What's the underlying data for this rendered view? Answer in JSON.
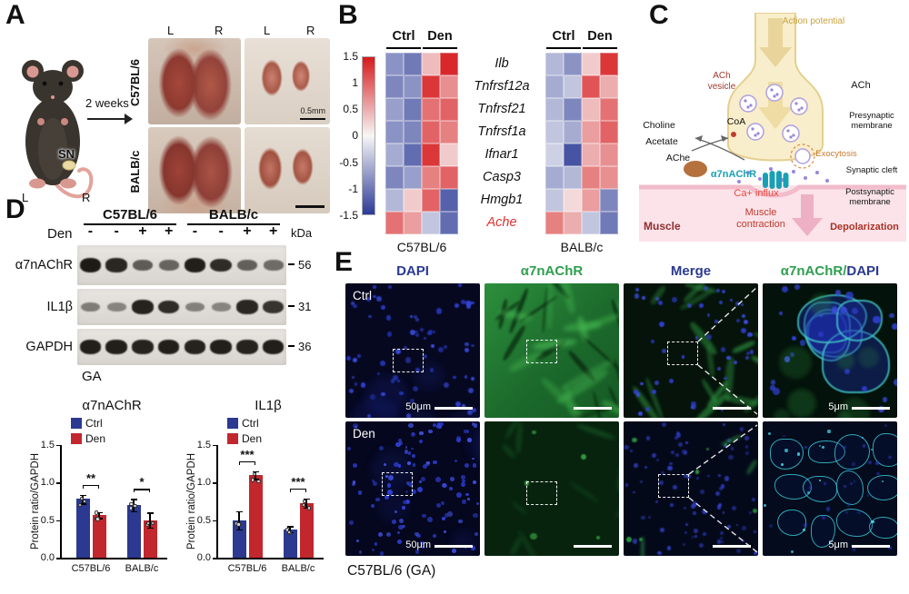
{
  "colors": {
    "ctrl": "#2b3990",
    "den": "#c1272d",
    "heat_pos": "#d7191c",
    "heat_neg": "#2c3b97",
    "dapi_blue": "#2b3990",
    "green": "#2e9e4f"
  },
  "panel_a": {
    "label": "A",
    "timeline": "2 weeks",
    "sn": "SN",
    "mouse_left": "L",
    "mouse_right": "R",
    "strains": [
      "C57BL/6",
      "BALB/c"
    ],
    "photo_col_labels": [
      "L",
      "R",
      "L",
      "R"
    ],
    "scale": "0.5mm"
  },
  "panel_b": {
    "label": "B",
    "colorbar_ticks": [
      "1.5",
      "1",
      "0.5",
      "0",
      "-0.5",
      "-1",
      "-1.5"
    ],
    "group_labels": [
      "Ctrl",
      "Den"
    ],
    "genes": [
      "Ilb",
      "Tnfrsf12a",
      "Tnfrsf21",
      "Tnfrsf1a",
      "Ifnar1",
      "Casp3",
      "Hmgb1",
      "Ache"
    ],
    "highlight_gene": "Ache",
    "heatmap_names": [
      "C57BL/6",
      "BALB/c"
    ]
  },
  "panel_c": {
    "label": "C",
    "action_potential": "Action potential",
    "ach_vesicle": "ACh vesicle",
    "ach": "ACh",
    "choline": "Choline",
    "coa": "CoA",
    "acetate": "Acetate",
    "ache": "AChe",
    "receptor": "α7nAChR",
    "exocytosis": "Exocytosis",
    "presynaptic": "Presynaptic membrane",
    "synaptic_cleft": "Synaptic cleft",
    "postsynaptic": "Postsynaptic membrane",
    "ca_influx": "Ca+ influx",
    "muscle_contraction": "Muscle contraction",
    "depolarization": "Depolarization",
    "muscle": "Muscle"
  },
  "panel_d": {
    "label": "D",
    "groups": [
      "C57BL/6",
      "BALB/c"
    ],
    "den": "Den",
    "lane_signs": [
      "-",
      "-",
      "+",
      "+",
      "-",
      "-",
      "+",
      "+"
    ],
    "kda": "kDa",
    "rows": [
      {
        "protein": "α7nAChR",
        "weight": "56",
        "intensities": [
          0.95,
          0.88,
          0.55,
          0.5,
          0.92,
          0.85,
          0.52,
          0.45
        ]
      },
      {
        "protein": "IL1β",
        "weight": "31",
        "intensities": [
          0.35,
          0.3,
          0.9,
          0.85,
          0.32,
          0.3,
          0.88,
          0.8
        ]
      },
      {
        "protein": "GAPDH",
        "weight": "36",
        "intensities": [
          0.92,
          0.92,
          0.9,
          0.92,
          0.9,
          0.92,
          0.9,
          0.92
        ]
      }
    ],
    "tissue": "GA"
  },
  "panel_e": {
    "label": "E",
    "headers": [
      "DAPI",
      "α7nAChR",
      "Merge"
    ],
    "header_combo": {
      "part1": "α7nAChR",
      "sep": "/",
      "part2": "DAPI"
    },
    "row_labels": [
      "Ctrl",
      "Den"
    ],
    "scale_50": "50μm",
    "scale_5": "5μm",
    "caption": "C57BL/6 (GA)"
  },
  "chart_data": [
    {
      "type": "heatmap",
      "name": "C57BL/6",
      "columns": [
        "Ctrl",
        "Ctrl",
        "Den",
        "Den"
      ],
      "rows": [
        "Ilb",
        "Tnfrsf12a",
        "Tnfrsf21",
        "Tnfrsf1a",
        "Ifnar1",
        "Casp3",
        "Hmgb1",
        "Ache"
      ],
      "zlim": [
        -1.5,
        1.5
      ],
      "values": [
        [
          -0.8,
          -1.0,
          0.4,
          1.4
        ],
        [
          -0.9,
          -0.8,
          1.3,
          0.7
        ],
        [
          -0.7,
          -1.0,
          0.9,
          1.0
        ],
        [
          -0.8,
          -0.9,
          1.0,
          0.8
        ],
        [
          -0.6,
          -1.1,
          1.3,
          0.3
        ],
        [
          -0.9,
          -0.7,
          0.8,
          1.0
        ],
        [
          -0.5,
          0.3,
          1.0,
          -1.2
        ],
        [
          0.9,
          0.6,
          -0.4,
          -1.1
        ]
      ]
    },
    {
      "type": "heatmap",
      "name": "BALB/c",
      "columns": [
        "Ctrl",
        "Ctrl",
        "Den",
        "Den"
      ],
      "rows": [
        "Ilb",
        "Tnfrsf12a",
        "Tnfrsf21",
        "Tnfrsf1a",
        "Ifnar1",
        "Casp3",
        "Hmgb1",
        "Ache"
      ],
      "zlim": [
        -1.5,
        1.5
      ],
      "values": [
        [
          -0.5,
          -0.8,
          0.3,
          1.3
        ],
        [
          -0.6,
          -0.4,
          1.1,
          0.5
        ],
        [
          -0.5,
          -0.9,
          0.4,
          0.9
        ],
        [
          -0.4,
          -0.6,
          0.6,
          1.0
        ],
        [
          -0.3,
          -1.3,
          0.5,
          0.7
        ],
        [
          -0.6,
          -0.5,
          0.8,
          0.7
        ],
        [
          -0.4,
          0.2,
          0.6,
          -0.9
        ],
        [
          0.8,
          0.5,
          -0.4,
          -1.0
        ]
      ]
    },
    {
      "type": "bar",
      "title": "α7nAChR",
      "ylabel": "Protein ratio/GAPDH",
      "ylim": [
        0,
        1.5
      ],
      "yticks": [
        "0.0",
        "0.5",
        "1.0",
        "1.5"
      ],
      "categories": [
        "C57BL/6",
        "BALB/c"
      ],
      "series": [
        {
          "name": "Ctrl",
          "values": [
            0.78,
            0.7
          ],
          "errors": [
            0.06,
            0.08
          ]
        },
        {
          "name": "Den",
          "values": [
            0.57,
            0.5
          ],
          "errors": [
            0.04,
            0.1
          ]
        }
      ],
      "significance": [
        "**",
        "*"
      ]
    },
    {
      "type": "bar",
      "title": "IL1β",
      "ylabel": "Protein ratio/GAPDH",
      "ylim": [
        0,
        1.5
      ],
      "yticks": [
        "0.0",
        "0.5",
        "1.0",
        "1.5"
      ],
      "categories": [
        "C57BL/6",
        "BALB/c"
      ],
      "series": [
        {
          "name": "Ctrl",
          "values": [
            0.5,
            0.38
          ],
          "errors": [
            0.12,
            0.04
          ]
        },
        {
          "name": "Den",
          "values": [
            1.1,
            0.73
          ],
          "errors": [
            0.05,
            0.06
          ]
        }
      ],
      "significance": [
        "***",
        "***"
      ]
    }
  ]
}
